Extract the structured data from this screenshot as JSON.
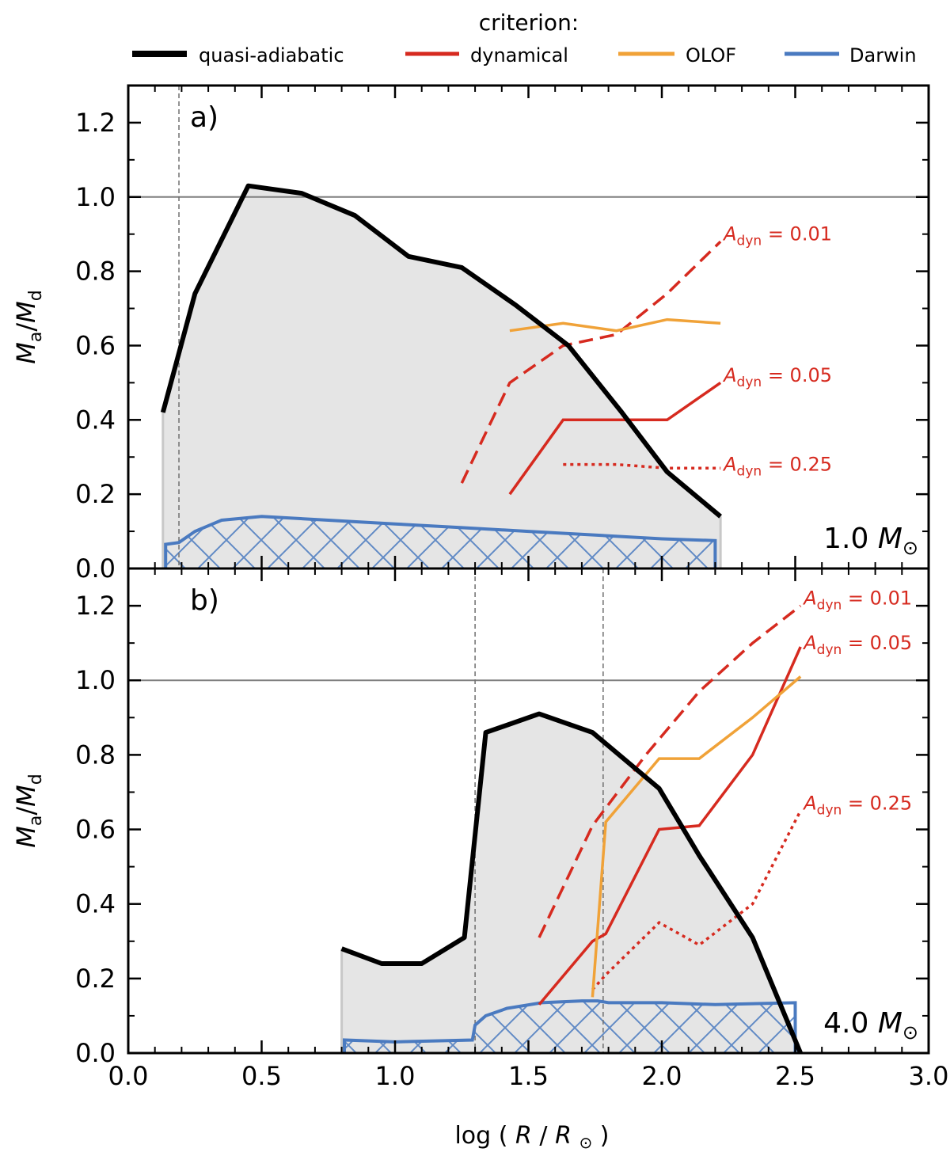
{
  "colors": {
    "quasi": "#000000",
    "dyn": "#d62a1f",
    "olof": "#f0a238",
    "darwin": "#4a7ac0",
    "fill": "#e5e5e5",
    "edge": "#c8c8c8",
    "ref": "#7f7f7f"
  },
  "legend": {
    "title": "criterion:",
    "items": [
      {
        "label": "quasi-adiabatic",
        "key": "quasi"
      },
      {
        "label": "dynamical",
        "key": "dyn"
      },
      {
        "label": "OLOF",
        "key": "olof"
      },
      {
        "label": "Darwin",
        "key": "darwin"
      }
    ]
  },
  "labels": {
    "adyn_sym": "A",
    "adyn_sub": "dyn",
    "y_main": "M",
    "y_a": "a",
    "y_d": "d",
    "x_log": "log",
    "x_R": "R",
    "sun": "⊙",
    "mass_unit": "M"
  },
  "chart_data": {
    "type": "line",
    "xlim": [
      0.0,
      3.0
    ],
    "ylim": [
      0.0,
      1.3
    ],
    "xticks": [
      "0.0",
      "0.5",
      "1.0",
      "1.5",
      "2.0",
      "2.5",
      "3.0"
    ],
    "xtick_values": [
      0.0,
      0.5,
      1.0,
      1.5,
      2.0,
      2.5,
      3.0
    ],
    "yticks": [
      "0.0",
      "0.2",
      "0.4",
      "0.6",
      "0.8",
      "1.0",
      "1.2"
    ],
    "ytick_values": [
      0.0,
      0.2,
      0.4,
      0.6,
      0.8,
      1.0,
      1.2
    ],
    "xlabel": "log (R/R⊙)",
    "ylabel": "Ma/Md",
    "reference_line_y": 1.0,
    "panels": [
      {
        "label": "a)",
        "mass_value": "1.0",
        "mass_text": "1.0 M⊙",
        "vlines": [
          0.19
        ],
        "quasi_adiabatic": {
          "x": [
            0.13,
            0.25,
            0.45,
            0.65,
            0.85,
            1.05,
            1.25,
            1.45,
            1.65,
            1.85,
            2.02,
            2.22
          ],
          "y": [
            0.42,
            0.74,
            1.03,
            1.01,
            0.95,
            0.84,
            0.81,
            0.71,
            0.6,
            0.42,
            0.26,
            0.14
          ]
        },
        "darwin": {
          "x": [
            0.14,
            0.19,
            0.25,
            0.35,
            0.5,
            0.75,
            1.0,
            1.25,
            1.5,
            1.75,
            2.0,
            2.2
          ],
          "y": [
            0.065,
            0.07,
            0.1,
            0.13,
            0.14,
            0.13,
            0.12,
            0.11,
            0.1,
            0.09,
            0.08,
            0.075
          ]
        },
        "olof": {
          "x": [
            1.43,
            1.63,
            1.83,
            2.02,
            2.22
          ],
          "y": [
            0.64,
            0.66,
            0.64,
            0.67,
            0.66
          ]
        },
        "dynamical": [
          {
            "adyn": "0.01",
            "label": "A_dyn = 0.01",
            "style": "dashed",
            "x": [
              1.25,
              1.43,
              1.63,
              1.83,
              2.02,
              2.22
            ],
            "y": [
              0.23,
              0.5,
              0.6,
              0.63,
              0.74,
              0.88
            ],
            "label_y": 0.9
          },
          {
            "adyn": "0.05",
            "label": "A_dyn = 0.05",
            "style": "solid",
            "x": [
              1.43,
              1.63,
              1.83,
              2.02,
              2.22
            ],
            "y": [
              0.2,
              0.4,
              0.4,
              0.4,
              0.5
            ],
            "label_y": 0.52
          },
          {
            "adyn": "0.25",
            "label": "A_dyn = 0.25",
            "style": "dotted",
            "x": [
              1.63,
              1.83,
              2.02,
              2.22
            ],
            "y": [
              0.28,
              0.28,
              0.27,
              0.27
            ],
            "label_y": 0.28
          }
        ]
      },
      {
        "label": "b)",
        "mass_value": "4.0",
        "mass_text": "4.0 M⊙",
        "vlines": [
          1.3,
          1.78
        ],
        "quasi_adiabatic": {
          "x": [
            0.8,
            0.95,
            1.1,
            1.26,
            1.34,
            1.54,
            1.74,
            1.99,
            2.14,
            2.34,
            2.52
          ],
          "y": [
            0.28,
            0.24,
            0.24,
            0.31,
            0.86,
            0.91,
            0.86,
            0.71,
            0.53,
            0.31,
            0.0
          ]
        },
        "darwin": {
          "x": [
            0.81,
            1.0,
            1.29,
            1.3,
            1.34,
            1.42,
            1.55,
            1.7,
            1.76,
            1.8,
            2.0,
            2.2,
            2.5
          ],
          "y": [
            0.035,
            0.03,
            0.035,
            0.075,
            0.1,
            0.12,
            0.135,
            0.14,
            0.14,
            0.135,
            0.135,
            0.13,
            0.135
          ]
        },
        "olof": {
          "x": [
            1.74,
            1.79,
            1.99,
            2.14,
            2.34,
            2.52
          ],
          "y": [
            0.15,
            0.62,
            0.79,
            0.79,
            0.9,
            1.01
          ]
        },
        "dynamical": [
          {
            "adyn": "0.01",
            "label": "A_dyn = 0.01",
            "style": "dashed",
            "x": [
              1.54,
              1.74,
              1.94,
              2.14,
              2.34,
              2.52
            ],
            "y": [
              0.31,
              0.61,
              0.8,
              0.97,
              1.1,
              1.2
            ],
            "label_y": 1.22
          },
          {
            "adyn": "0.05",
            "label": "A_dyn = 0.05",
            "style": "solid",
            "x": [
              1.54,
              1.74,
              1.79,
              1.99,
              2.14,
              2.34,
              2.52
            ],
            "y": [
              0.13,
              0.3,
              0.32,
              0.6,
              0.61,
              0.8,
              1.09
            ],
            "label_y": 1.1
          },
          {
            "adyn": "0.25",
            "label": "A_dyn = 0.25",
            "style": "dotted",
            "x": [
              1.74,
              1.79,
              1.99,
              2.14,
              2.34,
              2.52
            ],
            "y": [
              0.17,
              0.21,
              0.35,
              0.29,
              0.4,
              0.65
            ],
            "label_y": 0.67
          }
        ]
      }
    ]
  }
}
